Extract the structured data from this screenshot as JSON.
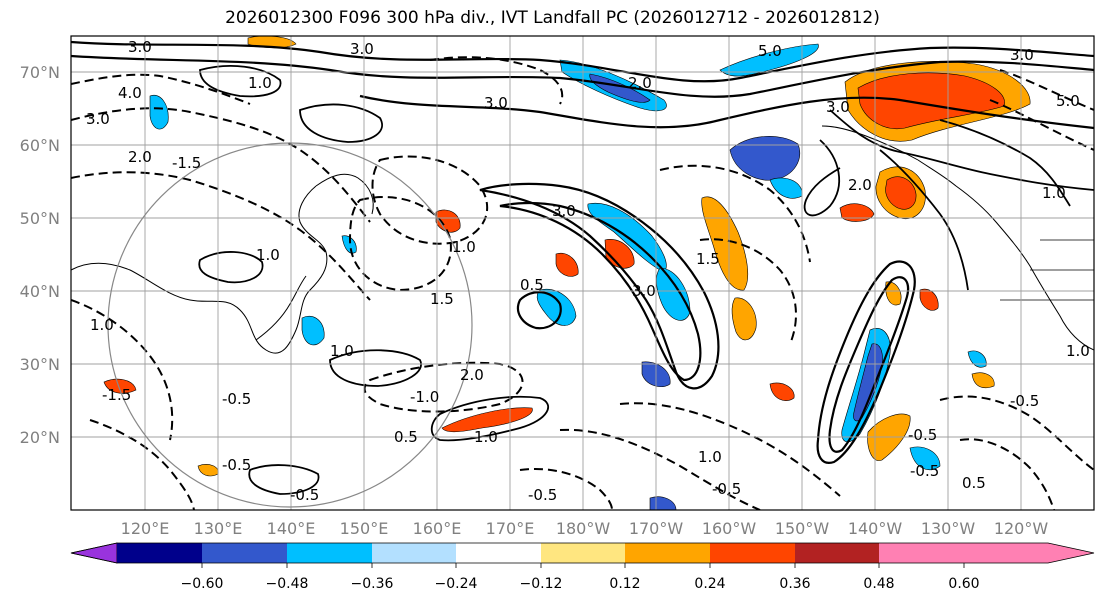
{
  "title": "2026012300 F096 300 hPa div., IVT Landfall PC (2026012712 - 2026012812)",
  "map": {
    "lat_labels": [
      "70°N",
      "60°N",
      "50°N",
      "40°N",
      "30°N",
      "20°N"
    ],
    "lon_labels": [
      "120°E",
      "130°E",
      "140°E",
      "150°E",
      "160°E",
      "170°E",
      "180°W",
      "170°W",
      "160°W",
      "150°W",
      "140°W",
      "130°W",
      "120°W"
    ],
    "contour_labels": [
      "3.0",
      "3.0",
      "1.0",
      "4.0",
      "3.0",
      "2.0",
      "-1.5",
      "1.0",
      "1.0",
      "-1.5",
      "3.0",
      "3.0",
      "2.0",
      "5.0",
      "5.0",
      "3.0",
      "2.0",
      "3.0",
      "1.5",
      "1.0",
      "1.0",
      "-0.5",
      "3.0",
      "0.5",
      "1.0",
      "0.5",
      "2.0",
      "-1.0",
      "1.0",
      "-0.5",
      "-0.5",
      "1.5",
      "-0.5",
      "-0.5",
      "1.0",
      "-0.5",
      "1.0",
      "-0.5",
      "-0.5",
      "0.5"
    ]
  },
  "colorbar": {
    "ticks": [
      "−0.60",
      "−0.48",
      "−0.36",
      "−0.24",
      "−0.12",
      "0.12",
      "0.24",
      "0.36",
      "0.48",
      "0.60"
    ],
    "colors": [
      "#9933dd",
      "#00008b",
      "#3358cc",
      "#00bfff",
      "#b3e0ff",
      "#ffffff",
      "#ffe680",
      "#ffa500",
      "#ff4500",
      "#b22222",
      "#ff80b3"
    ]
  },
  "fill_colors": {
    "neg_light": "#00bfff",
    "neg_mid": "#3358cc",
    "neg_dark": "#00008b",
    "pos_light": "#ffa500",
    "pos_mid": "#ff4500",
    "pos_dark": "#b22222"
  }
}
